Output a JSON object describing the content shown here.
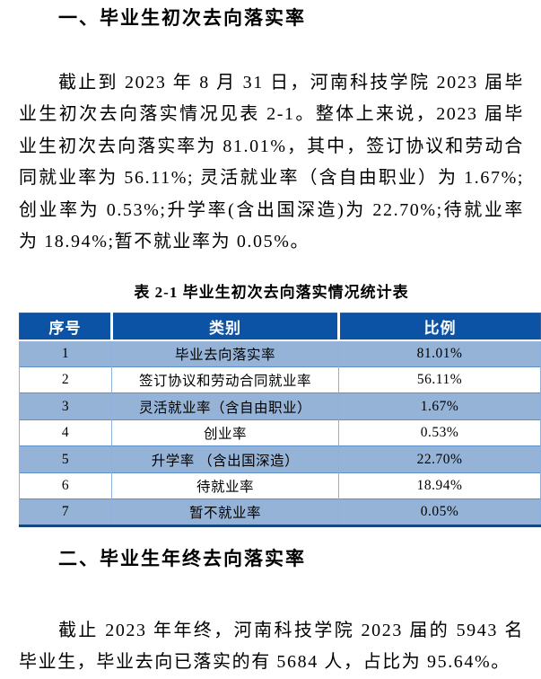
{
  "section1": {
    "title": "一、毕业生初次去向落实率"
  },
  "para1": "截止到 2023 年 8 月 31 日，河南科技学院 2023 届毕业生初次去向落实情况见表 2-1。整体上来说，2023 届毕业生初次去向落实率为 81.01%，其中，签订协议和劳动合同就业率为 56.11%; 灵活就业率（含自由职业）为 1.67%; 创业率为 0.53%;升学率(含出国深造)为 22.70%;待就业率为 18.94%;暂不就业率为 0.05%。",
  "table": {
    "caption": "表 2-1  毕业生初次去向落实情况统计表",
    "headers": [
      "序号",
      "类别",
      "比例"
    ],
    "rows": [
      [
        "1",
        "毕业去向落实率",
        "81.01%"
      ],
      [
        "2",
        "签订协议和劳动合同就业率",
        "56.11%"
      ],
      [
        "3",
        "灵活就业率（含自由职业）",
        "1.67%"
      ],
      [
        "4",
        "创业率",
        "0.53%"
      ],
      [
        "5",
        "升学率 （含出国深造）",
        "22.70%"
      ],
      [
        "6",
        "待就业率",
        "18.94%"
      ],
      [
        "7",
        "暂不就业率",
        "0.05%"
      ]
    ]
  },
  "section2": {
    "title": "二、毕业生年终去向落实率"
  },
  "para2": "截止 2023 年年终，河南科技学院 2023 届的 5943 名毕业生，毕业去向已落实的有 5684 人，占比为 95.64%。",
  "colors": {
    "table_header_bg": "#0d53a5",
    "table_stripe_bg": "#95b3d7",
    "table_border": "#5b8fc9",
    "table_bottom_border": "#17477f",
    "text": "#000000",
    "background": "#ffffff"
  }
}
